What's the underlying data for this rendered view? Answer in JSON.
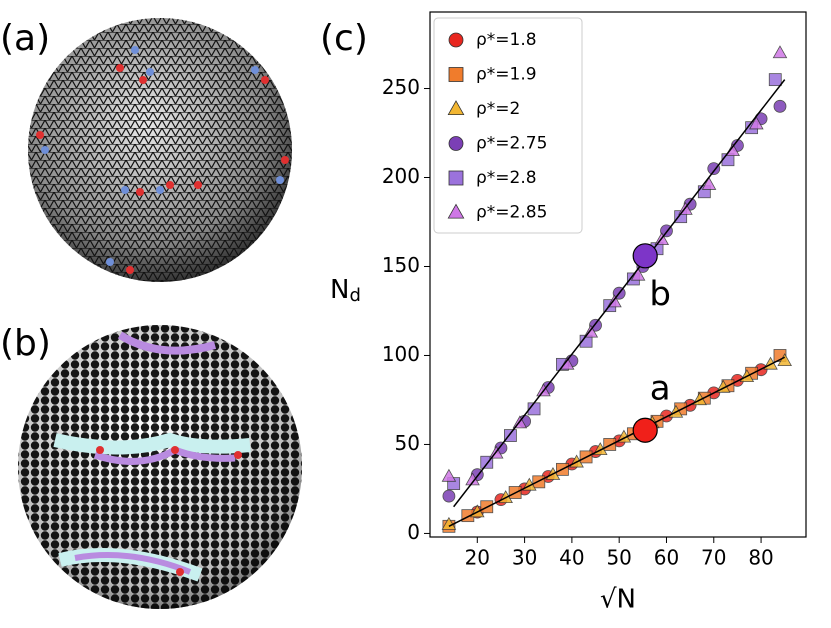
{
  "panel_labels": [
    "(a)",
    "(b)",
    "(c)"
  ],
  "chart_data": {
    "type": "scatter",
    "xlabel": "√N",
    "ylabel": "N",
    "ylabel_sub": "d",
    "xlim": [
      10,
      89.5
    ],
    "ylim": [
      -2,
      293
    ],
    "xticks": [
      20,
      30,
      40,
      50,
      60,
      70,
      80
    ],
    "yticks": [
      0,
      50,
      100,
      150,
      200,
      250
    ],
    "legend": "upper left",
    "series": [
      {
        "name": "ρ*=1.8",
        "color": "#e8261f",
        "marker": "circle",
        "x": [
          20,
          25,
          30,
          35,
          40,
          45,
          50,
          55,
          60,
          65,
          70,
          75,
          80
        ],
        "values": [
          12,
          19,
          25,
          32,
          39,
          46,
          52,
          59,
          66,
          72,
          79,
          86,
          92
        ]
      },
      {
        "name": "ρ*=1.9",
        "color": "#f07c2c",
        "marker": "square",
        "x": [
          14,
          18,
          22,
          28,
          33,
          38,
          43,
          48,
          53,
          58,
          63,
          68,
          73,
          78,
          84
        ],
        "values": [
          4,
          10,
          15,
          23,
          29,
          36,
          43,
          50,
          56,
          63,
          70,
          76,
          83,
          90,
          100
        ]
      },
      {
        "name": "ρ*=2",
        "color": "#f2b632",
        "marker": "triangle",
        "x": [
          14,
          20,
          26,
          31,
          36,
          41,
          46,
          51,
          57,
          62,
          67,
          72,
          77,
          82,
          85
        ],
        "values": [
          5,
          12,
          20,
          27,
          33,
          40,
          47,
          54,
          62,
          68,
          75,
          82,
          88,
          95,
          97
        ]
      },
      {
        "name": "ρ*=2.75",
        "color": "#7b3fb5",
        "marker": "circle",
        "x": [
          14,
          20,
          25,
          30,
          35,
          40,
          45,
          50,
          55,
          60,
          65,
          70,
          75,
          80,
          84
        ],
        "values": [
          21,
          33,
          48,
          63,
          82,
          97,
          117,
          135,
          150,
          170,
          185,
          205,
          218,
          233,
          240
        ]
      },
      {
        "name": "ρ*=2.8",
        "color": "#9b72dc",
        "marker": "square",
        "x": [
          15,
          22,
          27,
          32,
          38,
          43,
          48,
          53,
          58,
          63,
          68,
          73,
          78,
          83
        ],
        "values": [
          28,
          40,
          55,
          70,
          95,
          108,
          128,
          143,
          160,
          178,
          192,
          210,
          228,
          255
        ]
      },
      {
        "name": "ρ*=2.85",
        "color": "#cf77e6",
        "marker": "triangle",
        "x": [
          14,
          19,
          24,
          29,
          34,
          39,
          44,
          49,
          54,
          59,
          64,
          69,
          74,
          79,
          84
        ],
        "values": [
          32,
          30,
          45,
          62,
          80,
          95,
          113,
          130,
          145,
          165,
          182,
          196,
          215,
          230,
          270
        ]
      }
    ],
    "lines": [
      {
        "color": "#000000",
        "x": [
          14,
          85
        ],
        "values": [
          4,
          99
        ]
      },
      {
        "color": "#000000",
        "x": [
          15,
          85
        ],
        "values": [
          15,
          255
        ]
      }
    ],
    "highlights": [
      {
        "label": "a",
        "color": "#f0201a",
        "x": 55.5,
        "values": 58
      },
      {
        "label": "b",
        "color": "#7d35c8",
        "x": 55.5,
        "values": 156
      }
    ]
  }
}
